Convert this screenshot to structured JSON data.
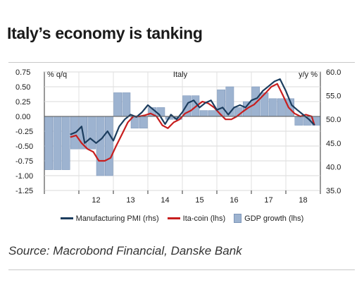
{
  "title": "Italy’s economy is tanking",
  "source": "Source: Macrobond Financial, Danske Bank",
  "chart_data": {
    "type": "line",
    "inner_title": "Italy",
    "left_axis_label": "% q/q",
    "right_axis_label": "y/y %",
    "left_ylim": [
      -1.25,
      0.75
    ],
    "right_ylim": [
      35.0,
      60.0
    ],
    "left_ticks": [
      "0.75",
      "0.50",
      "0.25",
      "0.00",
      "-0.25",
      "-0.50",
      "-0.75",
      "-1.00",
      "-1.25"
    ],
    "right_ticks": [
      "60.0",
      "55.0",
      "50.0",
      "45.0",
      "40.0",
      "35.0"
    ],
    "x_labels": [
      "12",
      "13",
      "14",
      "15",
      "16",
      "17",
      "18"
    ],
    "x_range": [
      2011.0,
      2019.0
    ],
    "x_axis_value": 0.0,
    "grid": true,
    "legend_position": "bottom",
    "colors": {
      "pmi": "#1c3d5e",
      "itacoin": "#c81e1e",
      "gdp": "#9db3d0",
      "gdp_edge": "#7d96b9"
    },
    "series": [
      {
        "name": "Manufacturing PMI (rhs)",
        "axis": "right",
        "kind": "line",
        "x": [
          2011.75,
          2011.92,
          2012.08,
          2012.17,
          2012.33,
          2012.5,
          2012.67,
          2012.83,
          2013.0,
          2013.17,
          2013.33,
          2013.5,
          2013.67,
          2013.83,
          2014.0,
          2014.17,
          2014.33,
          2014.5,
          2014.67,
          2014.83,
          2015.0,
          2015.17,
          2015.33,
          2015.5,
          2015.67,
          2015.83,
          2016.0,
          2016.17,
          2016.33,
          2016.5,
          2016.67,
          2016.83,
          2017.0,
          2017.17,
          2017.33,
          2017.5,
          2017.67,
          2017.83,
          2018.0,
          2018.17,
          2018.33,
          2018.5,
          2018.67,
          2018.83
        ],
        "values": [
          46.8,
          47.3,
          48.5,
          45.0,
          46.0,
          45.0,
          46.0,
          47.5,
          45.5,
          48.5,
          50.0,
          51.0,
          50.5,
          51.5,
          53.0,
          52.0,
          51.0,
          49.0,
          51.0,
          50.0,
          51.5,
          53.5,
          54.0,
          52.5,
          53.5,
          54.0,
          52.0,
          52.5,
          51.0,
          52.5,
          53.0,
          52.5,
          54.0,
          54.5,
          56.0,
          57.0,
          58.0,
          58.5,
          56.0,
          53.0,
          52.0,
          51.0,
          50.0,
          48.8
        ]
      },
      {
        "name": "Ita-coin (lhs)",
        "axis": "left",
        "kind": "line",
        "x": [
          2011.75,
          2011.92,
          2012.08,
          2012.25,
          2012.42,
          2012.58,
          2012.75,
          2012.92,
          2013.08,
          2013.25,
          2013.42,
          2013.58,
          2013.75,
          2013.92,
          2014.08,
          2014.25,
          2014.42,
          2014.58,
          2014.75,
          2014.92,
          2015.08,
          2015.25,
          2015.42,
          2015.58,
          2015.75,
          2015.92,
          2016.08,
          2016.25,
          2016.42,
          2016.58,
          2016.75,
          2016.92,
          2017.08,
          2017.25,
          2017.42,
          2017.58,
          2017.75,
          2017.92,
          2018.08,
          2018.25,
          2018.42,
          2018.58,
          2018.75,
          2018.83
        ],
        "values": [
          -0.35,
          -0.32,
          -0.45,
          -0.55,
          -0.6,
          -0.75,
          -0.75,
          -0.7,
          -0.5,
          -0.3,
          -0.1,
          0.0,
          0.0,
          0.02,
          0.05,
          0.0,
          -0.15,
          -0.2,
          -0.1,
          -0.05,
          0.05,
          0.1,
          0.18,
          0.25,
          0.22,
          0.15,
          0.05,
          -0.05,
          -0.05,
          0.0,
          0.08,
          0.15,
          0.2,
          0.3,
          0.4,
          0.5,
          0.55,
          0.35,
          0.15,
          0.05,
          0.0,
          0.03,
          0.0,
          -0.15
        ]
      },
      {
        "name": "GDP growth (lhs)",
        "axis": "left",
        "kind": "bar",
        "x": [
          2011.125,
          2011.375,
          2011.625,
          2011.875,
          2012.125,
          2012.375,
          2012.625,
          2012.875,
          2013.125,
          2013.375,
          2013.625,
          2013.875,
          2014.125,
          2014.375,
          2014.625,
          2014.875,
          2015.125,
          2015.375,
          2015.625,
          2015.875,
          2016.125,
          2016.375,
          2016.625,
          2016.875,
          2017.125,
          2017.375,
          2017.625,
          2017.875,
          2018.125,
          2018.375,
          2018.625,
          2018.875
        ],
        "values": [
          -0.9,
          -0.9,
          -0.9,
          -0.55,
          -0.55,
          -0.55,
          -1.0,
          -1.0,
          0.4,
          0.4,
          -0.2,
          -0.2,
          0.15,
          0.15,
          -0.05,
          -0.05,
          0.35,
          0.35,
          0.1,
          0.1,
          0.45,
          0.5,
          0.15,
          0.25,
          0.5,
          0.4,
          0.3,
          0.3,
          0.3,
          -0.15,
          -0.15,
          -0.15
        ]
      }
    ]
  }
}
